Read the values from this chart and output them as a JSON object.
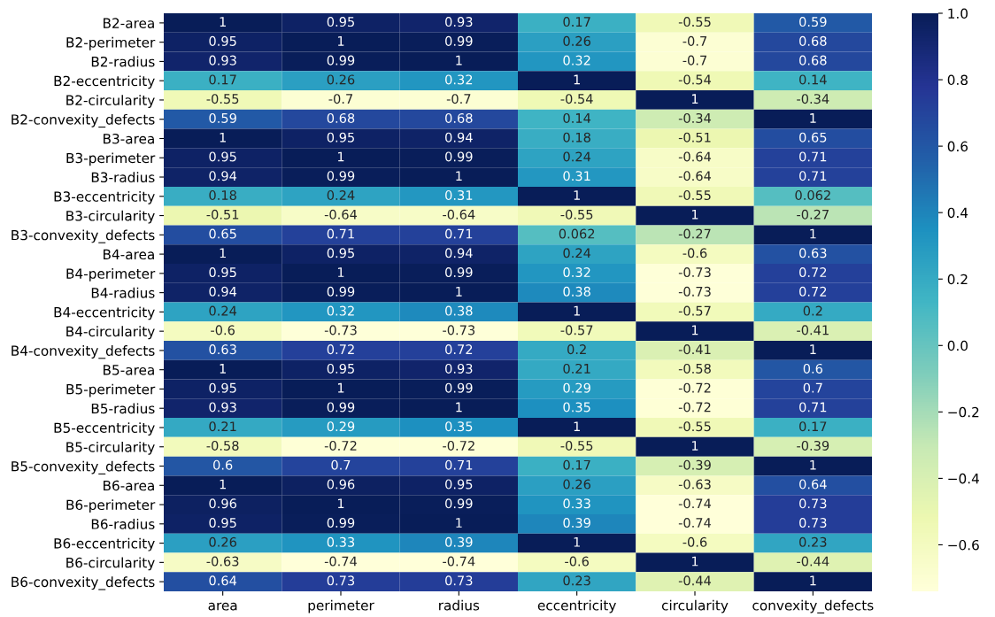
{
  "chart_data": {
    "type": "heatmap",
    "categories": [
      "area",
      "perimeter",
      "radius",
      "eccentricity",
      "circularity",
      "convexity_defects"
    ],
    "y_categories": [
      "B2-area",
      "B2-perimeter",
      "B2-radius",
      "B2-eccentricity",
      "B2-circularity",
      "B2-convexity_defects",
      "B3-area",
      "B3-perimeter",
      "B3-radius",
      "B3-eccentricity",
      "B3-circularity",
      "B3-convexity_defects",
      "B4-area",
      "B4-perimeter",
      "B4-radius",
      "B4-eccentricity",
      "B4-circularity",
      "B4-convexity_defects",
      "B5-area",
      "B5-perimeter",
      "B5-radius",
      "B5-eccentricity",
      "B5-circularity",
      "B5-convexity_defects",
      "B6-area",
      "B6-perimeter",
      "B6-radius",
      "B6-eccentricity",
      "B6-circularity",
      "B6-convexity_defects"
    ],
    "cells": [
      [
        1,
        0.95,
        0.93,
        0.17,
        -0.55,
        0.59
      ],
      [
        0.95,
        1,
        0.99,
        0.26,
        -0.7,
        0.68
      ],
      [
        0.93,
        0.99,
        1,
        0.32,
        -0.7,
        0.68
      ],
      [
        0.17,
        0.26,
        0.32,
        1,
        -0.54,
        0.14
      ],
      [
        -0.55,
        -0.7,
        -0.7,
        -0.54,
        1,
        -0.34
      ],
      [
        0.59,
        0.68,
        0.68,
        0.14,
        -0.34,
        1
      ],
      [
        1,
        0.95,
        0.94,
        0.18,
        -0.51,
        0.65
      ],
      [
        0.95,
        1,
        0.99,
        0.24,
        -0.64,
        0.71
      ],
      [
        0.94,
        0.99,
        1,
        0.31,
        -0.64,
        0.71
      ],
      [
        0.18,
        0.24,
        0.31,
        1,
        -0.55,
        0.062
      ],
      [
        -0.51,
        -0.64,
        -0.64,
        -0.55,
        1,
        -0.27
      ],
      [
        0.65,
        0.71,
        0.71,
        0.062,
        -0.27,
        1
      ],
      [
        1,
        0.95,
        0.94,
        0.24,
        -0.6,
        0.63
      ],
      [
        0.95,
        1,
        0.99,
        0.32,
        -0.73,
        0.72
      ],
      [
        0.94,
        0.99,
        1,
        0.38,
        -0.73,
        0.72
      ],
      [
        0.24,
        0.32,
        0.38,
        1,
        -0.57,
        0.2
      ],
      [
        -0.6,
        -0.73,
        -0.73,
        -0.57,
        1,
        -0.41
      ],
      [
        0.63,
        0.72,
        0.72,
        0.2,
        -0.41,
        1
      ],
      [
        1,
        0.95,
        0.93,
        0.21,
        -0.58,
        0.6
      ],
      [
        0.95,
        1,
        0.99,
        0.29,
        -0.72,
        0.7
      ],
      [
        0.93,
        0.99,
        1,
        0.35,
        -0.72,
        0.71
      ],
      [
        0.21,
        0.29,
        0.35,
        1,
        -0.55,
        0.17
      ],
      [
        -0.58,
        -0.72,
        -0.72,
        -0.55,
        1,
        -0.39
      ],
      [
        0.6,
        0.7,
        0.71,
        0.17,
        -0.39,
        1
      ],
      [
        1,
        0.96,
        0.95,
        0.26,
        -0.63,
        0.64
      ],
      [
        0.96,
        1,
        0.99,
        0.33,
        -0.74,
        0.73
      ],
      [
        0.95,
        0.99,
        1,
        0.39,
        -0.74,
        0.73
      ],
      [
        0.26,
        0.33,
        0.39,
        1,
        -0.6,
        0.23
      ],
      [
        -0.63,
        -0.74,
        -0.74,
        -0.6,
        1,
        -0.44
      ],
      [
        0.64,
        0.73,
        0.73,
        0.23,
        -0.44,
        1
      ]
    ],
    "clim": [
      -0.74,
      1
    ],
    "cticks": [
      {
        "value": -0.6,
        "label": "−0.6"
      },
      {
        "value": -0.4,
        "label": "−0.4"
      },
      {
        "value": -0.2,
        "label": "−0.2"
      },
      {
        "value": 0.0,
        "label": "0.0"
      },
      {
        "value": 0.2,
        "label": "0.2"
      },
      {
        "value": 0.4,
        "label": "0.4"
      },
      {
        "value": 0.6,
        "label": "0.6"
      },
      {
        "value": 0.8,
        "label": "0.8"
      },
      {
        "value": 1.0,
        "label": "1.0"
      }
    ],
    "data_labels": true
  }
}
